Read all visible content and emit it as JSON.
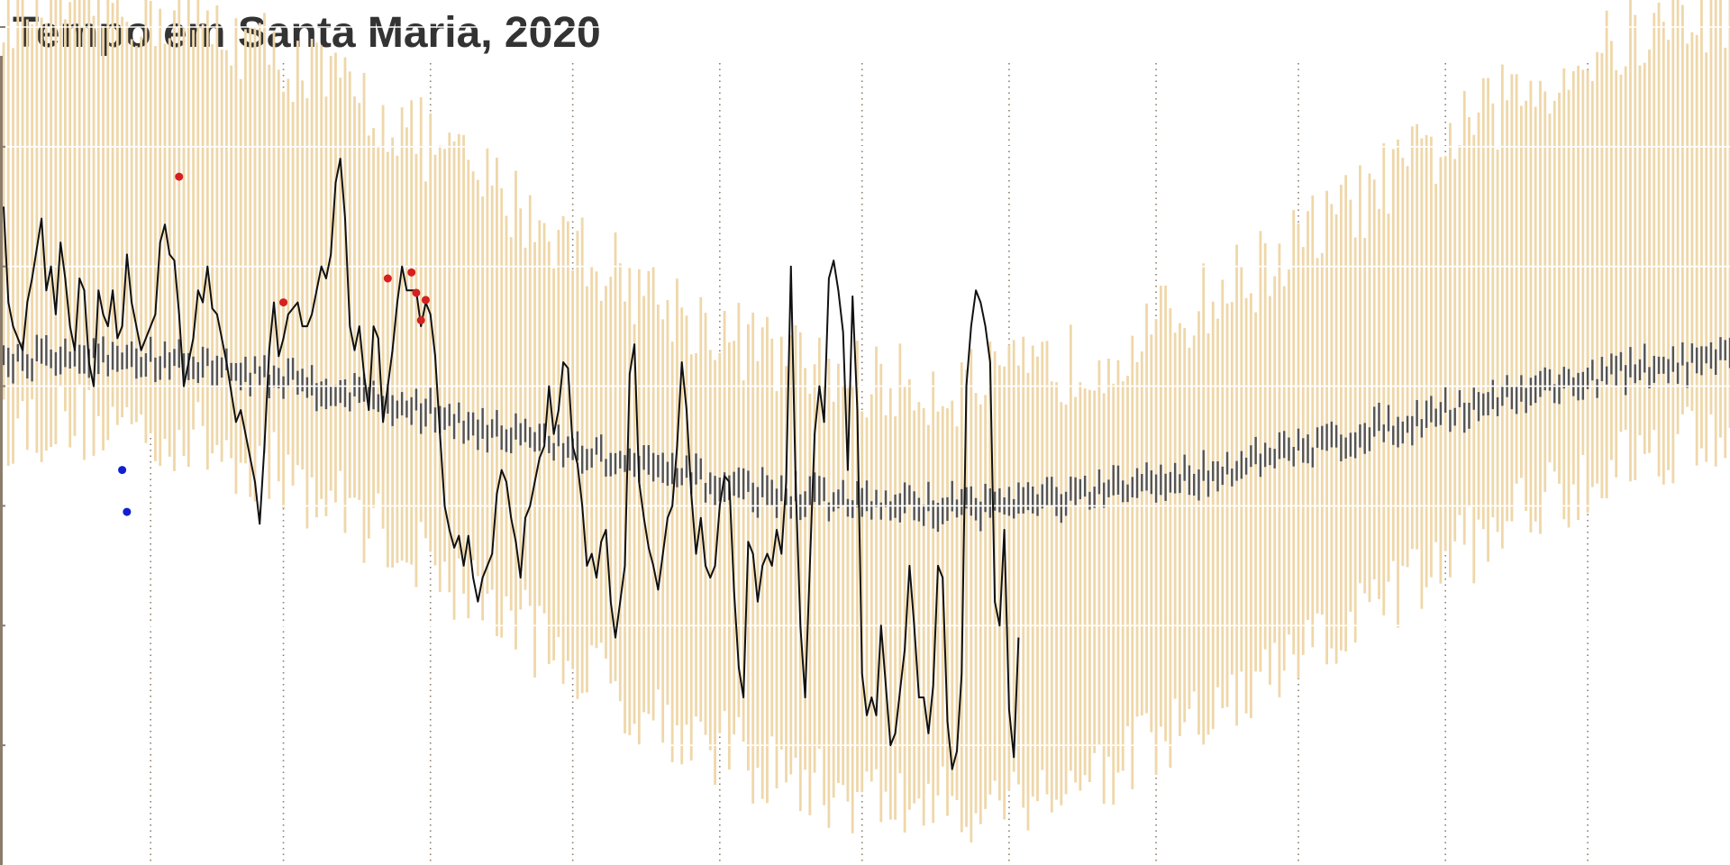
{
  "chart_data": {
    "type": "line",
    "title": "Tempo em Santa Maria, 2020",
    "xlabel": "",
    "ylabel": "",
    "x": {
      "unit": "day_of_year",
      "range": [
        1,
        365
      ],
      "month_boundaries": [
        32,
        60,
        91,
        121,
        152,
        182,
        213,
        244,
        274,
        305,
        335
      ]
    },
    "ylim": [
      0,
      7
    ],
    "grid": {
      "horizontal": [
        1,
        2,
        3,
        4,
        5,
        6,
        7
      ],
      "vertical_dotted": "month_boundaries"
    },
    "colors": {
      "record_band": "#efd7a9",
      "normal_band": "#555555",
      "temperature_line": "#111111",
      "record_high_point": "#d62020",
      "record_low_point": "#1020d0",
      "gridline": "#ffffff",
      "month_line": "#8b7d6b",
      "axis": "#8b7d6b"
    },
    "series": [
      {
        "role": "record_band",
        "model": {
          "high_base": 5.6,
          "high_amp": 1.6,
          "low_base": 2.1,
          "low_amp": 1.6,
          "peak_day": 15,
          "jitter": 0.35
        }
      },
      {
        "role": "normal_band",
        "model": {
          "high_base": 3.72,
          "high_amp": 0.62,
          "low_base": 3.52,
          "low_amp": 0.62,
          "peak_day": 15,
          "jitter": 0.1
        }
      },
      {
        "role": "temperature_line",
        "points": [
          [
            1,
            5.5
          ],
          [
            2,
            4.7
          ],
          [
            3,
            4.5
          ],
          [
            5,
            4.3
          ],
          [
            6,
            4.7
          ],
          [
            7,
            4.9
          ],
          [
            9,
            5.4
          ],
          [
            10,
            4.8
          ],
          [
            11,
            5.0
          ],
          [
            12,
            4.6
          ],
          [
            13,
            5.2
          ],
          [
            14,
            4.9
          ],
          [
            15,
            4.5
          ],
          [
            16,
            4.3
          ],
          [
            17,
            4.9
          ],
          [
            18,
            4.8
          ],
          [
            19,
            4.2
          ],
          [
            20,
            4.0
          ],
          [
            21,
            4.8
          ],
          [
            22,
            4.6
          ],
          [
            23,
            4.5
          ],
          [
            24,
            4.8
          ],
          [
            25,
            4.4
          ],
          [
            26,
            4.5
          ],
          [
            27,
            5.1
          ],
          [
            28,
            4.7
          ],
          [
            30,
            4.3
          ],
          [
            31,
            4.4
          ],
          [
            33,
            4.6
          ],
          [
            34,
            5.2
          ],
          [
            35,
            5.35
          ],
          [
            36,
            5.1
          ],
          [
            37,
            5.05
          ],
          [
            38,
            4.6
          ],
          [
            39,
            4.0
          ],
          [
            40,
            4.2
          ],
          [
            41,
            4.4
          ],
          [
            42,
            4.8
          ],
          [
            43,
            4.7
          ],
          [
            44,
            5.0
          ],
          [
            45,
            4.65
          ],
          [
            46,
            4.6
          ],
          [
            48,
            4.2
          ],
          [
            50,
            3.7
          ],
          [
            51,
            3.8
          ],
          [
            52,
            3.6
          ],
          [
            53,
            3.4
          ],
          [
            54,
            3.2
          ],
          [
            55,
            2.85
          ],
          [
            56,
            3.5
          ],
          [
            57,
            4.3
          ],
          [
            58,
            4.7
          ],
          [
            59,
            4.25
          ],
          [
            60,
            4.4
          ],
          [
            61,
            4.6
          ],
          [
            63,
            4.7
          ],
          [
            64,
            4.5
          ],
          [
            65,
            4.5
          ],
          [
            66,
            4.6
          ],
          [
            68,
            5.0
          ],
          [
            69,
            4.9
          ],
          [
            70,
            5.1
          ],
          [
            71,
            5.7
          ],
          [
            72,
            5.9
          ],
          [
            73,
            5.4
          ],
          [
            74,
            4.5
          ],
          [
            75,
            4.3
          ],
          [
            76,
            4.5
          ],
          [
            77,
            4.1
          ],
          [
            78,
            3.8
          ],
          [
            79,
            4.5
          ],
          [
            80,
            4.4
          ],
          [
            81,
            3.7
          ],
          [
            82,
            4.0
          ],
          [
            83,
            4.3
          ],
          [
            84,
            4.7
          ],
          [
            85,
            5.0
          ],
          [
            86,
            4.8
          ],
          [
            88,
            4.8
          ],
          [
            89,
            4.5
          ],
          [
            90,
            4.7
          ],
          [
            91,
            4.6
          ],
          [
            92,
            4.25
          ],
          [
            93,
            3.6
          ],
          [
            94,
            3.0
          ],
          [
            95,
            2.8
          ],
          [
            96,
            2.65
          ],
          [
            97,
            2.75
          ],
          [
            98,
            2.5
          ],
          [
            99,
            2.75
          ],
          [
            100,
            2.4
          ],
          [
            101,
            2.2
          ],
          [
            102,
            2.4
          ],
          [
            103,
            2.5
          ],
          [
            104,
            2.6
          ],
          [
            105,
            3.1
          ],
          [
            106,
            3.3
          ],
          [
            107,
            3.2
          ],
          [
            108,
            2.9
          ],
          [
            109,
            2.7
          ],
          [
            110,
            2.4
          ],
          [
            111,
            2.9
          ],
          [
            112,
            3.0
          ],
          [
            113,
            3.2
          ],
          [
            114,
            3.4
          ],
          [
            115,
            3.5
          ],
          [
            116,
            4.0
          ],
          [
            117,
            3.6
          ],
          [
            118,
            3.8
          ],
          [
            119,
            4.2
          ],
          [
            120,
            4.15
          ],
          [
            121,
            3.5
          ],
          [
            122,
            3.35
          ],
          [
            123,
            3.0
          ],
          [
            124,
            2.5
          ],
          [
            125,
            2.6
          ],
          [
            126,
            2.4
          ],
          [
            127,
            2.7
          ],
          [
            128,
            2.8
          ],
          [
            129,
            2.2
          ],
          [
            130,
            1.9
          ],
          [
            131,
            2.2
          ],
          [
            132,
            2.5
          ],
          [
            133,
            4.1
          ],
          [
            134,
            4.35
          ],
          [
            135,
            3.2
          ],
          [
            136,
            2.9
          ],
          [
            137,
            2.65
          ],
          [
            138,
            2.5
          ],
          [
            139,
            2.3
          ],
          [
            140,
            2.6
          ],
          [
            141,
            2.9
          ],
          [
            142,
            3.0
          ],
          [
            143,
            3.5
          ],
          [
            144,
            4.2
          ],
          [
            145,
            3.8
          ],
          [
            146,
            3.1
          ],
          [
            147,
            2.6
          ],
          [
            148,
            2.9
          ],
          [
            149,
            2.5
          ],
          [
            150,
            2.4
          ],
          [
            151,
            2.5
          ],
          [
            152,
            3.0
          ],
          [
            153,
            3.25
          ],
          [
            154,
            3.2
          ],
          [
            155,
            2.3
          ],
          [
            156,
            1.65
          ],
          [
            157,
            1.4
          ],
          [
            158,
            2.7
          ],
          [
            159,
            2.6
          ],
          [
            160,
            2.2
          ],
          [
            161,
            2.5
          ],
          [
            162,
            2.6
          ],
          [
            163,
            2.5
          ],
          [
            164,
            2.8
          ],
          [
            165,
            2.6
          ],
          [
            166,
            3.2
          ],
          [
            167,
            5.0
          ],
          [
            168,
            3.2
          ],
          [
            169,
            2.0
          ],
          [
            170,
            1.4
          ],
          [
            171,
            2.5
          ],
          [
            172,
            3.6
          ],
          [
            173,
            4.0
          ],
          [
            174,
            3.7
          ],
          [
            175,
            4.9
          ],
          [
            176,
            5.05
          ],
          [
            177,
            4.8
          ],
          [
            178,
            4.45
          ],
          [
            179,
            3.3
          ],
          [
            180,
            4.75
          ],
          [
            181,
            3.8
          ],
          [
            182,
            1.6
          ],
          [
            183,
            1.25
          ],
          [
            184,
            1.4
          ],
          [
            185,
            1.25
          ],
          [
            186,
            2.0
          ],
          [
            187,
            1.5
          ],
          [
            188,
            1.0
          ],
          [
            189,
            1.1
          ],
          [
            190,
            1.45
          ],
          [
            191,
            1.8
          ],
          [
            192,
            2.5
          ],
          [
            193,
            2.0
          ],
          [
            194,
            1.4
          ],
          [
            195,
            1.4
          ],
          [
            196,
            1.1
          ],
          [
            197,
            1.5
          ],
          [
            198,
            2.5
          ],
          [
            199,
            2.4
          ],
          [
            200,
            1.2
          ],
          [
            201,
            0.8
          ],
          [
            202,
            0.95
          ],
          [
            203,
            1.6
          ],
          [
            204,
            4.0
          ],
          [
            205,
            4.5
          ],
          [
            206,
            4.8
          ],
          [
            207,
            4.7
          ],
          [
            208,
            4.5
          ],
          [
            209,
            4.2
          ],
          [
            210,
            2.2
          ],
          [
            211,
            2.0
          ],
          [
            212,
            2.8
          ],
          [
            213,
            1.3
          ],
          [
            214,
            0.9
          ],
          [
            215,
            1.9
          ]
        ]
      },
      {
        "role": "record_high_point",
        "points": [
          [
            38,
            5.75
          ],
          [
            60,
            4.7
          ],
          [
            82,
            4.9
          ],
          [
            87,
            4.95
          ],
          [
            88,
            4.78
          ],
          [
            89,
            4.55
          ],
          [
            90,
            4.72
          ]
        ]
      },
      {
        "role": "record_low_point",
        "points": [
          [
            26,
            3.3
          ],
          [
            27,
            2.95
          ]
        ]
      }
    ]
  }
}
